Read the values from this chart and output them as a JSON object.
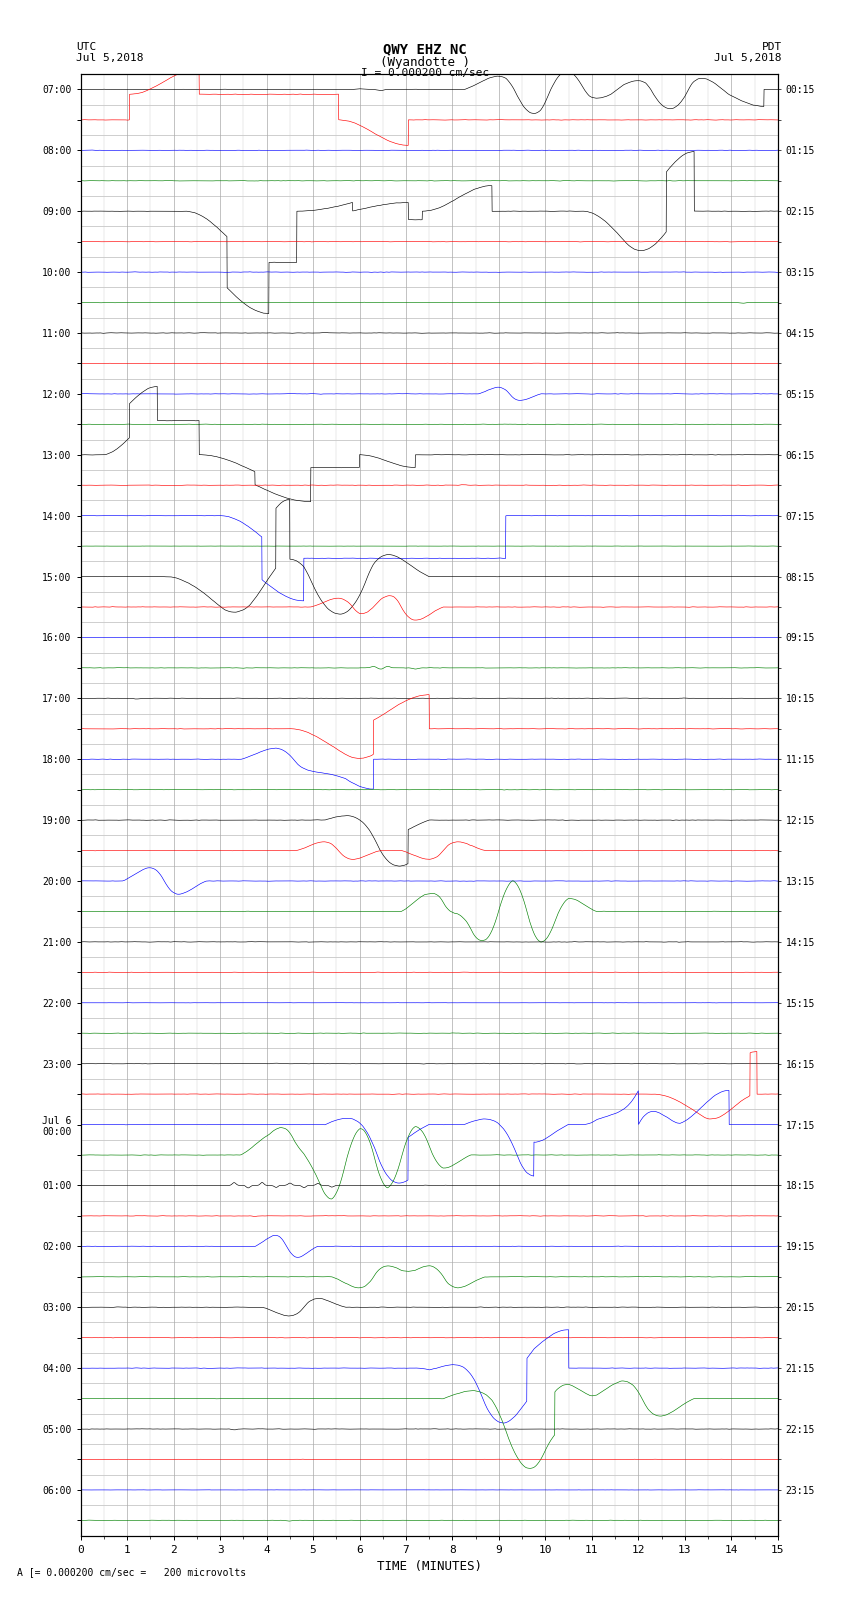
{
  "title_line1": "QWY EHZ NC",
  "title_line2": "(Wyandotte )",
  "scale_text": "I = 0.000200 cm/sec",
  "left_label_1": "UTC",
  "left_label_2": "Jul 5,2018",
  "right_label_1": "PDT",
  "right_label_2": "Jul 5,2018",
  "bottom_label": "A [= 0.000200 cm/sec =   200 microvolts",
  "xlabel": "TIME (MINUTES)",
  "utc_times": [
    "07:00",
    "",
    "08:00",
    "",
    "09:00",
    "",
    "10:00",
    "",
    "11:00",
    "",
    "12:00",
    "",
    "13:00",
    "",
    "14:00",
    "",
    "15:00",
    "",
    "16:00",
    "",
    "17:00",
    "",
    "18:00",
    "",
    "19:00",
    "",
    "20:00",
    "",
    "21:00",
    "",
    "22:00",
    "",
    "23:00",
    "",
    "Jul 6\n00:00",
    "",
    "01:00",
    "",
    "02:00",
    "",
    "03:00",
    "",
    "04:00",
    "",
    "05:00",
    "",
    "06:00",
    ""
  ],
  "pdt_times": [
    "00:15",
    "",
    "01:15",
    "",
    "02:15",
    "",
    "03:15",
    "",
    "04:15",
    "",
    "05:15",
    "",
    "06:15",
    "",
    "07:15",
    "",
    "08:15",
    "",
    "09:15",
    "",
    "10:15",
    "",
    "11:15",
    "",
    "12:15",
    "",
    "13:15",
    "",
    "14:15",
    "",
    "15:15",
    "",
    "16:15",
    "",
    "17:15",
    "",
    "18:15",
    "",
    "19:15",
    "",
    "20:15",
    "",
    "21:15",
    "",
    "22:15",
    "",
    "23:15",
    ""
  ],
  "num_rows": 48,
  "bg_color": "#ffffff",
  "grid_color": "#aaaaaa",
  "grid_minor_color": "#cccccc",
  "colors_cycle": [
    "black",
    "red",
    "blue",
    "green"
  ],
  "noise_amp": 0.04,
  "trace_scale": 0.28
}
